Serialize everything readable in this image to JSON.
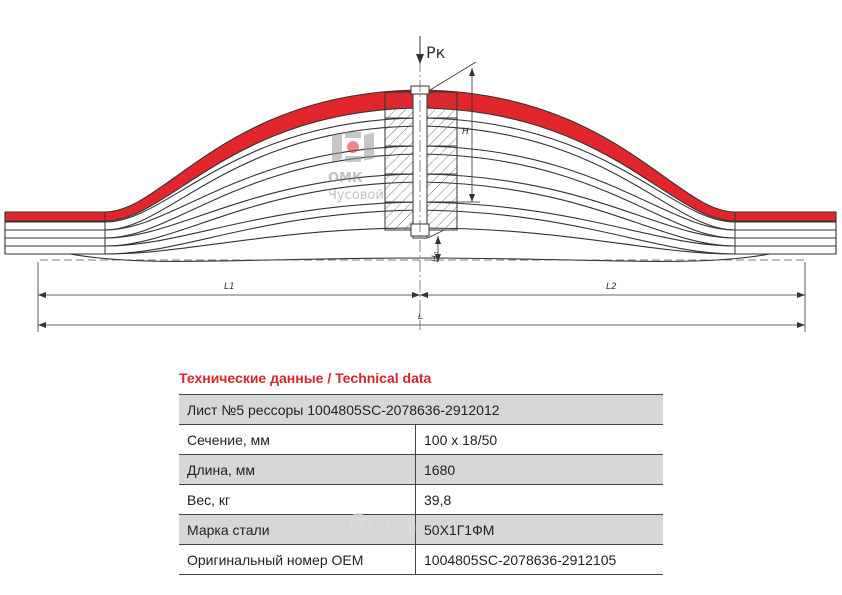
{
  "drawing": {
    "force_label": "Pк",
    "height_label": "H",
    "height0_label": "H₀",
    "l1_label": "L1",
    "l2_label": "L2",
    "l_label": "L",
    "logo_text": "ОМК",
    "logo_sub": "Чусовой"
  },
  "spec": {
    "title": "Технические данные / Technical data",
    "rows": [
      {
        "label": "Лист №5 рессоры 1004805SC-2078636-2912012",
        "value": ""
      },
      {
        "label": "Сечение, мм",
        "value": "100 x 18/50"
      },
      {
        "label": "Длина, мм",
        "value": "1680"
      },
      {
        "label": "Вес, кг",
        "value": "39,8"
      },
      {
        "label": "Марка стали",
        "value": "50Х1Г1ФМ"
      },
      {
        "label": "Оригинальный номер OEM",
        "value": "1004805SC-2078636-2912105"
      }
    ]
  },
  "watermark": {
    "main": "aбcp",
    "suffix": ".ru"
  },
  "colors": {
    "highlight": "#e3262b",
    "line": "#333333",
    "row_shade": "#d7d7d7"
  }
}
